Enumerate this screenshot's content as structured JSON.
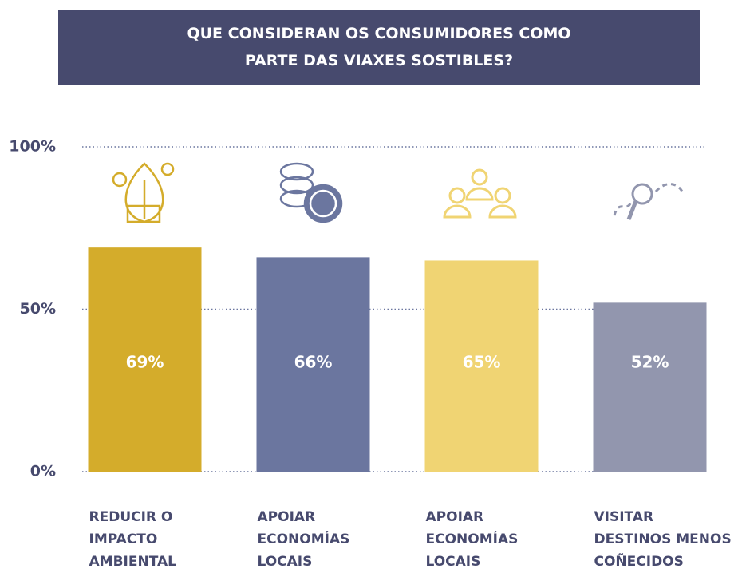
{
  "chart_data": {
    "type": "bar",
    "title": "QUE CONSIDERAN OS CONSUMIDORES COMO PARTE DAS VIAXES SOSTIBLES?",
    "categories": [
      [
        "REDUCIR O",
        "IMPACTO",
        "AMBIENTAL"
      ],
      [
        "APOIAR",
        "ECONOMÍAS",
        "LOCAIS"
      ],
      [
        "APOIAR",
        "ECONOMÍAS",
        "LOCAIS"
      ],
      [
        "VISITAR",
        "DESTINOS MENOS",
        "COÑECIDOS"
      ]
    ],
    "values": [
      69,
      66,
      65,
      52
    ],
    "value_labels": [
      "69%",
      "66%",
      "65%",
      "52%"
    ],
    "colors": [
      "#d4ac2b",
      "#6b769f",
      "#f0d473",
      "#9296ae"
    ],
    "ylim": [
      0,
      100
    ],
    "yticks": [
      {
        "value": 0,
        "label": "0%"
      },
      {
        "value": 50,
        "label": "50%"
      },
      {
        "value": 100,
        "label": "100%"
      }
    ],
    "grid": true
  }
}
